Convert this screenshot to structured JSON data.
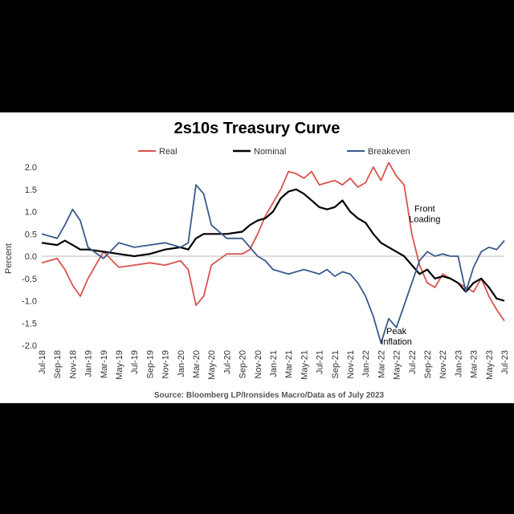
{
  "chart_data": {
    "type": "line",
    "title": "2s10s Treasury Curve",
    "ylabel": "Percent",
    "xlabel": "",
    "ylim": [
      -2.0,
      2.0
    ],
    "yticks": [
      "2.0",
      "1.5",
      "1.0",
      "0.5",
      "0.0",
      "-0.5",
      "-1.0",
      "-1.5",
      "-2.0"
    ],
    "ytick_values": [
      2.0,
      1.5,
      1.0,
      0.5,
      0.0,
      -0.5,
      -1.0,
      -1.5,
      -2.0
    ],
    "x_range": [
      "2018-07",
      "2023-07"
    ],
    "xticks": [
      "Jul-18",
      "Sep-18",
      "Nov-18",
      "Jan-19",
      "Mar-19",
      "May-19",
      "Jul-19",
      "Sep-19",
      "Nov-19",
      "Jan-20",
      "Mar-20",
      "May-20",
      "Jul-20",
      "Sep-20",
      "Nov-20",
      "Jan-21",
      "Mar-21",
      "May-21",
      "Jul-21",
      "Sep-21",
      "Nov-21",
      "Jan-22",
      "Mar-22",
      "May-22",
      "Jul-22",
      "Sep-22",
      "Nov-22",
      "Jan-23",
      "Mar-23",
      "May-23",
      "Jul-23"
    ],
    "legend_position": "top",
    "grid": false,
    "series": [
      {
        "name": "Real",
        "color": "#d9534f",
        "x": [
          "2018-07",
          "2018-09",
          "2018-10",
          "2018-11",
          "2018-12",
          "2019-01",
          "2019-03",
          "2019-05",
          "2019-07",
          "2019-09",
          "2019-11",
          "2020-01",
          "2020-02",
          "2020-03",
          "2020-04",
          "2020-05",
          "2020-07",
          "2020-09",
          "2020-10",
          "2020-11",
          "2020-12",
          "2021-01",
          "2021-02",
          "2021-03",
          "2021-04",
          "2021-05",
          "2021-06",
          "2021-07",
          "2021-08",
          "2021-09",
          "2021-10",
          "2021-11",
          "2021-12",
          "2022-01",
          "2022-02",
          "2022-03",
          "2022-04",
          "2022-05",
          "2022-06",
          "2022-07",
          "2022-08",
          "2022-09",
          "2022-10",
          "2022-11",
          "2022-12",
          "2023-01",
          "2023-02",
          "2023-03",
          "2023-04",
          "2023-05",
          "2023-06",
          "2023-07"
        ],
        "y": [
          -0.15,
          -0.05,
          -0.3,
          -0.65,
          -0.9,
          -0.5,
          0.1,
          -0.25,
          -0.2,
          -0.15,
          -0.2,
          -0.1,
          -0.3,
          -1.1,
          -0.9,
          -0.2,
          0.05,
          0.05,
          0.15,
          0.5,
          0.9,
          1.2,
          1.5,
          1.9,
          1.85,
          1.75,
          1.9,
          1.6,
          1.65,
          1.7,
          1.6,
          1.75,
          1.55,
          1.65,
          2.0,
          1.7,
          2.1,
          1.8,
          1.6,
          0.5,
          -0.2,
          -0.6,
          -0.7,
          -0.4,
          -0.5,
          -0.6,
          -0.7,
          -0.8,
          -0.5,
          -0.9,
          -1.2,
          -1.45
        ]
      },
      {
        "name": "Nominal",
        "color": "#000000",
        "x": [
          "2018-07",
          "2018-09",
          "2018-10",
          "2018-11",
          "2018-12",
          "2019-01",
          "2019-03",
          "2019-05",
          "2019-07",
          "2019-09",
          "2019-11",
          "2020-01",
          "2020-02",
          "2020-03",
          "2020-04",
          "2020-05",
          "2020-07",
          "2020-09",
          "2020-10",
          "2020-11",
          "2020-12",
          "2021-01",
          "2021-02",
          "2021-03",
          "2021-04",
          "2021-05",
          "2021-06",
          "2021-07",
          "2021-08",
          "2021-09",
          "2021-10",
          "2021-11",
          "2021-12",
          "2022-01",
          "2022-02",
          "2022-03",
          "2022-04",
          "2022-05",
          "2022-06",
          "2022-07",
          "2022-08",
          "2022-09",
          "2022-10",
          "2022-11",
          "2022-12",
          "2023-01",
          "2023-02",
          "2023-03",
          "2023-04",
          "2023-05",
          "2023-06",
          "2023-07"
        ],
        "y": [
          0.3,
          0.25,
          0.35,
          0.25,
          0.15,
          0.15,
          0.1,
          0.05,
          0.0,
          0.05,
          0.15,
          0.2,
          0.15,
          0.4,
          0.5,
          0.5,
          0.5,
          0.55,
          0.7,
          0.8,
          0.85,
          1.0,
          1.3,
          1.45,
          1.5,
          1.4,
          1.25,
          1.1,
          1.05,
          1.1,
          1.25,
          1.0,
          0.85,
          0.75,
          0.5,
          0.3,
          0.2,
          0.1,
          0.0,
          -0.2,
          -0.4,
          -0.3,
          -0.5,
          -0.45,
          -0.5,
          -0.6,
          -0.8,
          -0.6,
          -0.5,
          -0.7,
          -0.95,
          -1.0
        ]
      },
      {
        "name": "Breakeven",
        "color": "#3a5a8c",
        "x": [
          "2018-07",
          "2018-09",
          "2018-10",
          "2018-11",
          "2018-12",
          "2019-01",
          "2019-03",
          "2019-05",
          "2019-07",
          "2019-09",
          "2019-11",
          "2020-01",
          "2020-02",
          "2020-03",
          "2020-04",
          "2020-05",
          "2020-07",
          "2020-09",
          "2020-10",
          "2020-11",
          "2020-12",
          "2021-01",
          "2021-02",
          "2021-03",
          "2021-04",
          "2021-05",
          "2021-06",
          "2021-07",
          "2021-08",
          "2021-09",
          "2021-10",
          "2021-11",
          "2021-12",
          "2022-01",
          "2022-02",
          "2022-03",
          "2022-04",
          "2022-05",
          "2022-06",
          "2022-07",
          "2022-08",
          "2022-09",
          "2022-10",
          "2022-11",
          "2022-12",
          "2023-01",
          "2023-02",
          "2023-03",
          "2023-04",
          "2023-05",
          "2023-06",
          "2023-07"
        ],
        "y": [
          0.5,
          0.4,
          0.7,
          1.05,
          0.8,
          0.2,
          -0.05,
          0.3,
          0.2,
          0.25,
          0.3,
          0.2,
          0.3,
          1.6,
          1.4,
          0.7,
          0.4,
          0.4,
          0.2,
          0.0,
          -0.1,
          -0.3,
          -0.35,
          -0.4,
          -0.35,
          -0.3,
          -0.35,
          -0.4,
          -0.3,
          -0.45,
          -0.35,
          -0.4,
          -0.6,
          -0.9,
          -1.35,
          -1.95,
          -1.4,
          -1.6,
          -1.1,
          -0.6,
          -0.1,
          0.1,
          0.0,
          0.05,
          0.0,
          0.0,
          -0.8,
          -0.25,
          0.1,
          0.2,
          0.15,
          0.35
        ]
      }
    ],
    "annotations": [
      {
        "lines": [
          "Front",
          "Loading"
        ],
        "x": "2022-07",
        "y": 1.0
      },
      {
        "lines": [
          "Peak",
          "Inflation"
        ],
        "x": "2022-05",
        "y": -1.75
      }
    ],
    "source": "Source: Bloomberg LP/Ironsides Macro/Data as of July 2023"
  }
}
